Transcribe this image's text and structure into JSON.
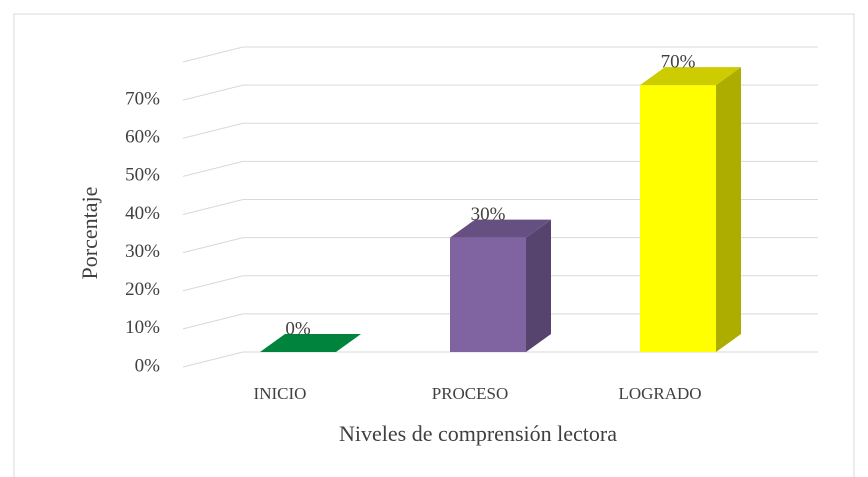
{
  "chart_data": {
    "type": "bar3d",
    "y_label": "Porcentaje",
    "x_label": "Niveles de comprensión lectora",
    "categories": [
      "INICIO",
      "PROCESO",
      "LOGRADO"
    ],
    "values": [
      0,
      30,
      70
    ],
    "value_labels": [
      "0%",
      "30%",
      "70%"
    ],
    "colors": [
      "#00843d",
      "#8064a2",
      "#ffff00"
    ],
    "ylim": [
      0,
      80
    ],
    "yticks": [
      {
        "value": 0,
        "label": "0%"
      },
      {
        "value": 10,
        "label": "10%"
      },
      {
        "value": 20,
        "label": "20%"
      },
      {
        "value": 30,
        "label": "30%"
      },
      {
        "value": 40,
        "label": "40%"
      },
      {
        "value": 50,
        "label": "50%"
      },
      {
        "value": 60,
        "label": "60%"
      },
      {
        "value": 70,
        "label": "70%"
      }
    ],
    "grid": true
  }
}
